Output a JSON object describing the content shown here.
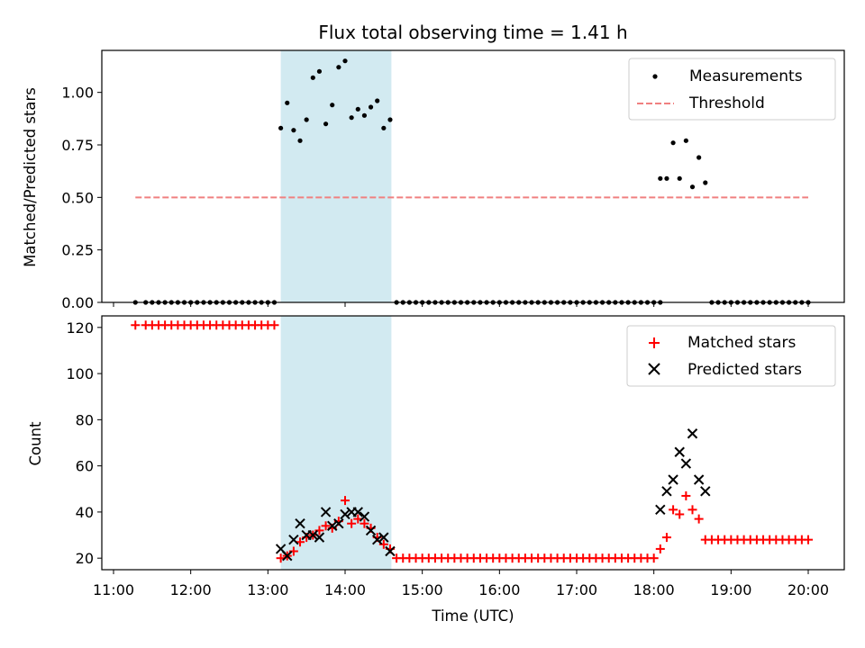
{
  "chart_data": [
    {
      "type": "scatter",
      "title": "Flux total observing time = 1.41 h",
      "xlabel": "",
      "ylabel": "Matched/Predicted stars",
      "xlim": [
        "11:00",
        "20:00"
      ],
      "ylim": [
        0,
        1.2
      ],
      "yticks": [
        "0.00",
        "0.25",
        "0.50",
        "0.75",
        "1.00"
      ],
      "xticks": [],
      "legend_position": "top-right",
      "highlight_band": {
        "x": [
          "13:10",
          "14:36"
        ],
        "color": "#add8e6"
      },
      "series": [
        {
          "name": "Measurements",
          "color": "#000000",
          "marker": "dot",
          "x": [
            "11:17",
            "11:25",
            "11:30",
            "11:35",
            "11:40",
            "11:45",
            "11:50",
            "11:55",
            "12:00",
            "12:05",
            "12:10",
            "12:15",
            "12:20",
            "12:25",
            "12:30",
            "12:35",
            "12:40",
            "12:45",
            "12:50",
            "12:55",
            "13:00",
            "13:05",
            "13:10",
            "13:15",
            "13:20",
            "13:25",
            "13:30",
            "13:35",
            "13:40",
            "13:45",
            "13:50",
            "13:55",
            "14:00",
            "14:05",
            "14:10",
            "14:15",
            "14:20",
            "14:25",
            "14:30",
            "14:35",
            "14:40",
            "14:45",
            "14:50",
            "14:55",
            "15:00",
            "15:05",
            "15:10",
            "15:15",
            "15:20",
            "15:25",
            "15:30",
            "15:35",
            "15:40",
            "15:45",
            "15:50",
            "15:55",
            "16:00",
            "16:05",
            "16:10",
            "16:15",
            "16:20",
            "16:25",
            "16:30",
            "16:35",
            "16:40",
            "16:45",
            "16:50",
            "16:55",
            "17:00",
            "17:05",
            "17:10",
            "17:15",
            "17:20",
            "17:25",
            "17:30",
            "17:35",
            "17:40",
            "17:45",
            "17:50",
            "17:55",
            "18:00",
            "18:05",
            "18:05",
            "18:10",
            "18:15",
            "18:20",
            "18:25",
            "18:30",
            "18:35",
            "18:40",
            "18:45",
            "18:50",
            "18:55",
            "19:00",
            "19:05",
            "19:10",
            "19:15",
            "19:20",
            "19:25",
            "19:30",
            "19:35",
            "19:40",
            "19:45",
            "19:50",
            "19:55",
            "20:00"
          ],
          "y": [
            0,
            0,
            0,
            0,
            0,
            0,
            0,
            0,
            0,
            0,
            0,
            0,
            0,
            0,
            0,
            0,
            0,
            0,
            0,
            0,
            0,
            0,
            0.83,
            0.95,
            0.82,
            0.77,
            0.87,
            1.07,
            1.1,
            0.85,
            0.94,
            1.12,
            1.15,
            0.88,
            0.92,
            0.89,
            0.93,
            0.96,
            0.83,
            0.87,
            0,
            0,
            0,
            0,
            0,
            0,
            0,
            0,
            0,
            0,
            0,
            0,
            0,
            0,
            0,
            0,
            0,
            0,
            0,
            0,
            0,
            0,
            0,
            0,
            0,
            0,
            0,
            0,
            0,
            0,
            0,
            0,
            0,
            0,
            0,
            0,
            0,
            0,
            0,
            0,
            0,
            0,
            0.59,
            0.59,
            0.76,
            0.59,
            0.77,
            0.55,
            0.69,
            0.57,
            0,
            0,
            0,
            0,
            0,
            0,
            0,
            0,
            0,
            0,
            0,
            0,
            0,
            0,
            0,
            0
          ]
        },
        {
          "name": "Threshold",
          "color": "#f08080",
          "marker": "dashed-line",
          "x": [
            "11:17",
            "20:00"
          ],
          "y": [
            0.5,
            0.5
          ]
        }
      ]
    },
    {
      "type": "scatter",
      "title": "",
      "xlabel": "Time (UTC)",
      "ylabel": "Count",
      "xlim": [
        "11:00",
        "20:00"
      ],
      "ylim": [
        15,
        125
      ],
      "yticks": [
        "20",
        "40",
        "60",
        "80",
        "100",
        "120"
      ],
      "xticks": [
        "11:00",
        "12:00",
        "13:00",
        "14:00",
        "15:00",
        "16:00",
        "17:00",
        "18:00",
        "19:00",
        "20:00"
      ],
      "legend_position": "top-right",
      "highlight_band": {
        "x": [
          "13:10",
          "14:36"
        ],
        "color": "#add8e6"
      },
      "series": [
        {
          "name": "Matched stars",
          "color": "#ff0000",
          "marker": "plus",
          "x": [
            "11:17",
            "11:25",
            "11:30",
            "11:35",
            "11:40",
            "11:45",
            "11:50",
            "11:55",
            "12:00",
            "12:05",
            "12:10",
            "12:15",
            "12:20",
            "12:25",
            "12:30",
            "12:35",
            "12:40",
            "12:45",
            "12:50",
            "12:55",
            "13:00",
            "13:05",
            "13:10",
            "13:15",
            "13:20",
            "13:25",
            "13:30",
            "13:35",
            "13:40",
            "13:45",
            "13:50",
            "13:55",
            "14:00",
            "14:05",
            "14:10",
            "14:15",
            "14:20",
            "14:25",
            "14:30",
            "14:35",
            "14:40",
            "14:45",
            "14:50",
            "14:55",
            "15:00",
            "15:05",
            "15:10",
            "15:15",
            "15:20",
            "15:25",
            "15:30",
            "15:35",
            "15:40",
            "15:45",
            "15:50",
            "15:55",
            "16:00",
            "16:05",
            "16:10",
            "16:15",
            "16:20",
            "16:25",
            "16:30",
            "16:35",
            "16:40",
            "16:45",
            "16:50",
            "16:55",
            "17:00",
            "17:05",
            "17:10",
            "17:15",
            "17:20",
            "17:25",
            "17:30",
            "17:35",
            "17:40",
            "17:45",
            "17:50",
            "17:55",
            "18:00",
            "18:05",
            "18:10",
            "18:15",
            "18:20",
            "18:25",
            "18:30",
            "18:35",
            "18:40",
            "18:45",
            "18:50",
            "18:55",
            "19:00",
            "19:05",
            "19:10",
            "19:15",
            "19:20",
            "19:25",
            "19:30",
            "19:35",
            "19:40",
            "19:45",
            "19:50",
            "19:55",
            "20:00"
          ],
          "y": [
            121,
            121,
            121,
            121,
            121,
            121,
            121,
            121,
            121,
            121,
            121,
            121,
            121,
            121,
            121,
            121,
            121,
            121,
            121,
            121,
            121,
            121,
            20,
            21,
            23,
            27,
            29,
            30,
            32,
            34,
            33,
            36,
            45,
            35,
            37,
            35,
            33,
            29,
            26,
            24,
            20,
            20,
            20,
            20,
            20,
            20,
            20,
            20,
            20,
            20,
            20,
            20,
            20,
            20,
            20,
            20,
            20,
            20,
            20,
            20,
            20,
            20,
            20,
            20,
            20,
            20,
            20,
            20,
            20,
            20,
            20,
            20,
            20,
            20,
            20,
            20,
            20,
            20,
            20,
            20,
            20,
            24,
            29,
            41,
            39,
            47,
            41,
            37,
            28,
            28,
            28,
            28,
            28,
            28,
            28,
            28,
            28,
            28,
            28,
            28,
            28,
            28,
            28,
            28,
            28
          ]
        },
        {
          "name": "Predicted stars",
          "color": "#000000",
          "marker": "x",
          "x": [
            "13:10",
            "13:15",
            "13:20",
            "13:25",
            "13:30",
            "13:35",
            "13:40",
            "13:45",
            "13:50",
            "13:55",
            "14:00",
            "14:05",
            "14:10",
            "14:15",
            "14:20",
            "14:25",
            "14:30",
            "14:35",
            "18:05",
            "18:10",
            "18:15",
            "18:20",
            "18:25",
            "18:30",
            "18:35",
            "18:40"
          ],
          "y": [
            24,
            21,
            28,
            35,
            30,
            30,
            29,
            40,
            34,
            35,
            39,
            40,
            40,
            38,
            32,
            28,
            29,
            23,
            41,
            49,
            54,
            66,
            61,
            74,
            54,
            49
          ]
        }
      ]
    }
  ]
}
